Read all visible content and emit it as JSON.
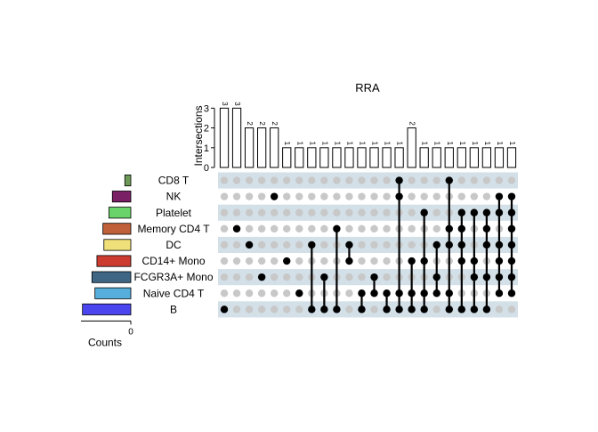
{
  "chart_data": {
    "type": "upset",
    "title": "RRA",
    "intersection_axis": {
      "label": "Intersections",
      "ticks": [
        0,
        1,
        2,
        3
      ],
      "ylim": [
        0,
        3.2
      ]
    },
    "set_size_axis": {
      "label": "Counts",
      "ticks": [
        0
      ]
    },
    "sets": [
      {
        "name": "CD8 T",
        "color": "#6e9a58"
      },
      {
        "name": "NK",
        "color": "#7a1f66"
      },
      {
        "name": "Platelet",
        "color": "#6ad46a"
      },
      {
        "name": "Memory CD4 T",
        "color": "#c0603a"
      },
      {
        "name": "DC",
        "color": "#f0e07a"
      },
      {
        "name": "CD14+ Mono",
        "color": "#cc3b30"
      },
      {
        "name": "FCGR3A+ Mono",
        "color": "#3f6685"
      },
      {
        "name": "Naive CD4 T",
        "color": "#55aedb"
      },
      {
        "name": "B",
        "color": "#4b45f0"
      }
    ],
    "set_size_rel": [
      0.12,
      0.37,
      0.44,
      0.56,
      0.54,
      0.68,
      0.78,
      0.72,
      0.97
    ],
    "intersections": [
      {
        "value": 3,
        "label": "3",
        "sets": [
          "B"
        ]
      },
      {
        "value": 3,
        "label": "3",
        "sets": [
          "Memory CD4 T"
        ]
      },
      {
        "value": 2,
        "label": "2",
        "sets": [
          "DC"
        ]
      },
      {
        "value": 2,
        "label": "2",
        "sets": [
          "FCGR3A+ Mono"
        ]
      },
      {
        "value": 2,
        "label": "2",
        "sets": [
          "NK"
        ]
      },
      {
        "value": 1,
        "label": "1",
        "sets": [
          "CD14+ Mono"
        ]
      },
      {
        "value": 1,
        "label": "1",
        "sets": [
          "Naive CD4 T"
        ]
      },
      {
        "value": 1,
        "label": "1",
        "sets": [
          "DC",
          "B"
        ]
      },
      {
        "value": 1,
        "label": "1",
        "sets": [
          "FCGR3A+ Mono",
          "B"
        ]
      },
      {
        "value": 1,
        "label": "1",
        "sets": [
          "Memory CD4 T",
          "B"
        ]
      },
      {
        "value": 1,
        "label": "1",
        "sets": [
          "DC",
          "CD14+ Mono"
        ]
      },
      {
        "value": 1,
        "label": "1",
        "sets": [
          "Naive CD4 T",
          "B"
        ]
      },
      {
        "value": 1,
        "label": "1",
        "sets": [
          "FCGR3A+ Mono",
          "Naive CD4 T"
        ]
      },
      {
        "value": 1,
        "label": "1",
        "sets": [
          "Naive CD4 T",
          "B"
        ]
      },
      {
        "value": 1,
        "label": "1",
        "sets": [
          "CD8 T",
          "NK",
          "Naive CD4 T",
          "B"
        ]
      },
      {
        "value": 2,
        "label": "2",
        "sets": [
          "CD14+ Mono",
          "Naive CD4 T",
          "B"
        ]
      },
      {
        "value": 1,
        "label": "1",
        "sets": [
          "Platelet",
          "CD14+ Mono",
          "Naive CD4 T",
          "B"
        ]
      },
      {
        "value": 1,
        "label": "1",
        "sets": [
          "DC",
          "FCGR3A+ Mono",
          "Naive CD4 T"
        ]
      },
      {
        "value": 1,
        "label": "1",
        "sets": [
          "CD8 T",
          "Memory CD4 T",
          "DC",
          "Naive CD4 T",
          "B"
        ]
      },
      {
        "value": 1,
        "label": "1",
        "sets": [
          "Platelet",
          "Memory CD4 T",
          "DC",
          "CD14+ Mono",
          "B"
        ]
      },
      {
        "value": 1,
        "label": "1",
        "sets": [
          "Platelet",
          "CD14+ Mono",
          "FCGR3A+ Mono",
          "B"
        ]
      },
      {
        "value": 1,
        "label": "1",
        "sets": [
          "Platelet",
          "Memory CD4 T",
          "DC",
          "FCGR3A+ Mono",
          "B"
        ]
      },
      {
        "value": 1,
        "label": "1",
        "sets": [
          "NK",
          "Platelet",
          "DC",
          "CD14+ Mono",
          "FCGR3A+ Mono",
          "Naive CD4 T"
        ]
      },
      {
        "value": 1,
        "label": "1",
        "sets": [
          "NK",
          "Platelet",
          "Memory CD4 T",
          "DC",
          "CD14+ Mono",
          "FCGR3A+ Mono",
          "Naive CD4 T"
        ]
      }
    ],
    "colors": {
      "dot_active": "#000000",
      "dot_inactive": "#c8c8c8",
      "stripe": "#d3e0e8",
      "bar_fill": "#ffffff",
      "bar_stroke": "#000000"
    }
  }
}
